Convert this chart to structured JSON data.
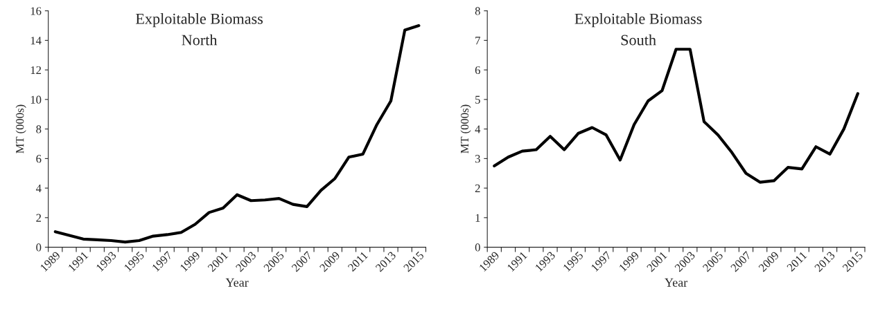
{
  "chart_data": [
    {
      "type": "line",
      "title": "Exploitable Biomass",
      "subtitle": "North",
      "xlabel": "Year",
      "ylabel": "MT (000s)",
      "categories": [
        "1989",
        null,
        "1991",
        null,
        "1993",
        null,
        "1995",
        null,
        "1997",
        null,
        "1999",
        null,
        "2001",
        null,
        "2003",
        null,
        "2005",
        null,
        "2007",
        null,
        "2009",
        null,
        "2011",
        null,
        "2013",
        null,
        "2015"
      ],
      "series": [
        {
          "color": "#000000",
          "values": [
            1.05,
            0.8,
            0.55,
            0.5,
            0.45,
            0.35,
            0.45,
            0.75,
            0.85,
            1.0,
            1.55,
            2.35,
            2.65,
            3.55,
            3.15,
            3.2,
            3.3,
            2.9,
            2.75,
            3.85,
            4.65,
            6.1,
            6.3,
            8.3,
            9.9,
            14.7,
            15.0
          ]
        }
      ],
      "ylim": [
        0,
        16
      ],
      "yticks": [
        0,
        2,
        4,
        6,
        8,
        10,
        12,
        14,
        16
      ],
      "grid": false,
      "legend": false
    },
    {
      "type": "line",
      "title": "Exploitable Biomass",
      "subtitle": "South",
      "xlabel": "Year",
      "ylabel": "MT (000s)",
      "categories": [
        "1989",
        null,
        "1991",
        null,
        "1993",
        null,
        "1995",
        null,
        "1997",
        null,
        "1999",
        null,
        "2001",
        null,
        "2003",
        null,
        "2005",
        null,
        "2007",
        null,
        "2009",
        null,
        "2011",
        null,
        "2013",
        null,
        "2015"
      ],
      "series": [
        {
          "color": "#000000",
          "values": [
            2.75,
            3.05,
            3.25,
            3.3,
            3.75,
            3.3,
            3.85,
            4.05,
            3.8,
            2.95,
            4.15,
            4.95,
            5.3,
            6.7,
            6.7,
            4.25,
            3.8,
            3.2,
            2.5,
            2.2,
            2.25,
            2.7,
            2.65,
            3.4,
            3.15,
            4.0,
            5.2
          ]
        }
      ],
      "ylim": [
        0,
        8
      ],
      "yticks": [
        0,
        1,
        2,
        3,
        4,
        5,
        6,
        7,
        8
      ],
      "grid": false,
      "legend": false
    }
  ]
}
